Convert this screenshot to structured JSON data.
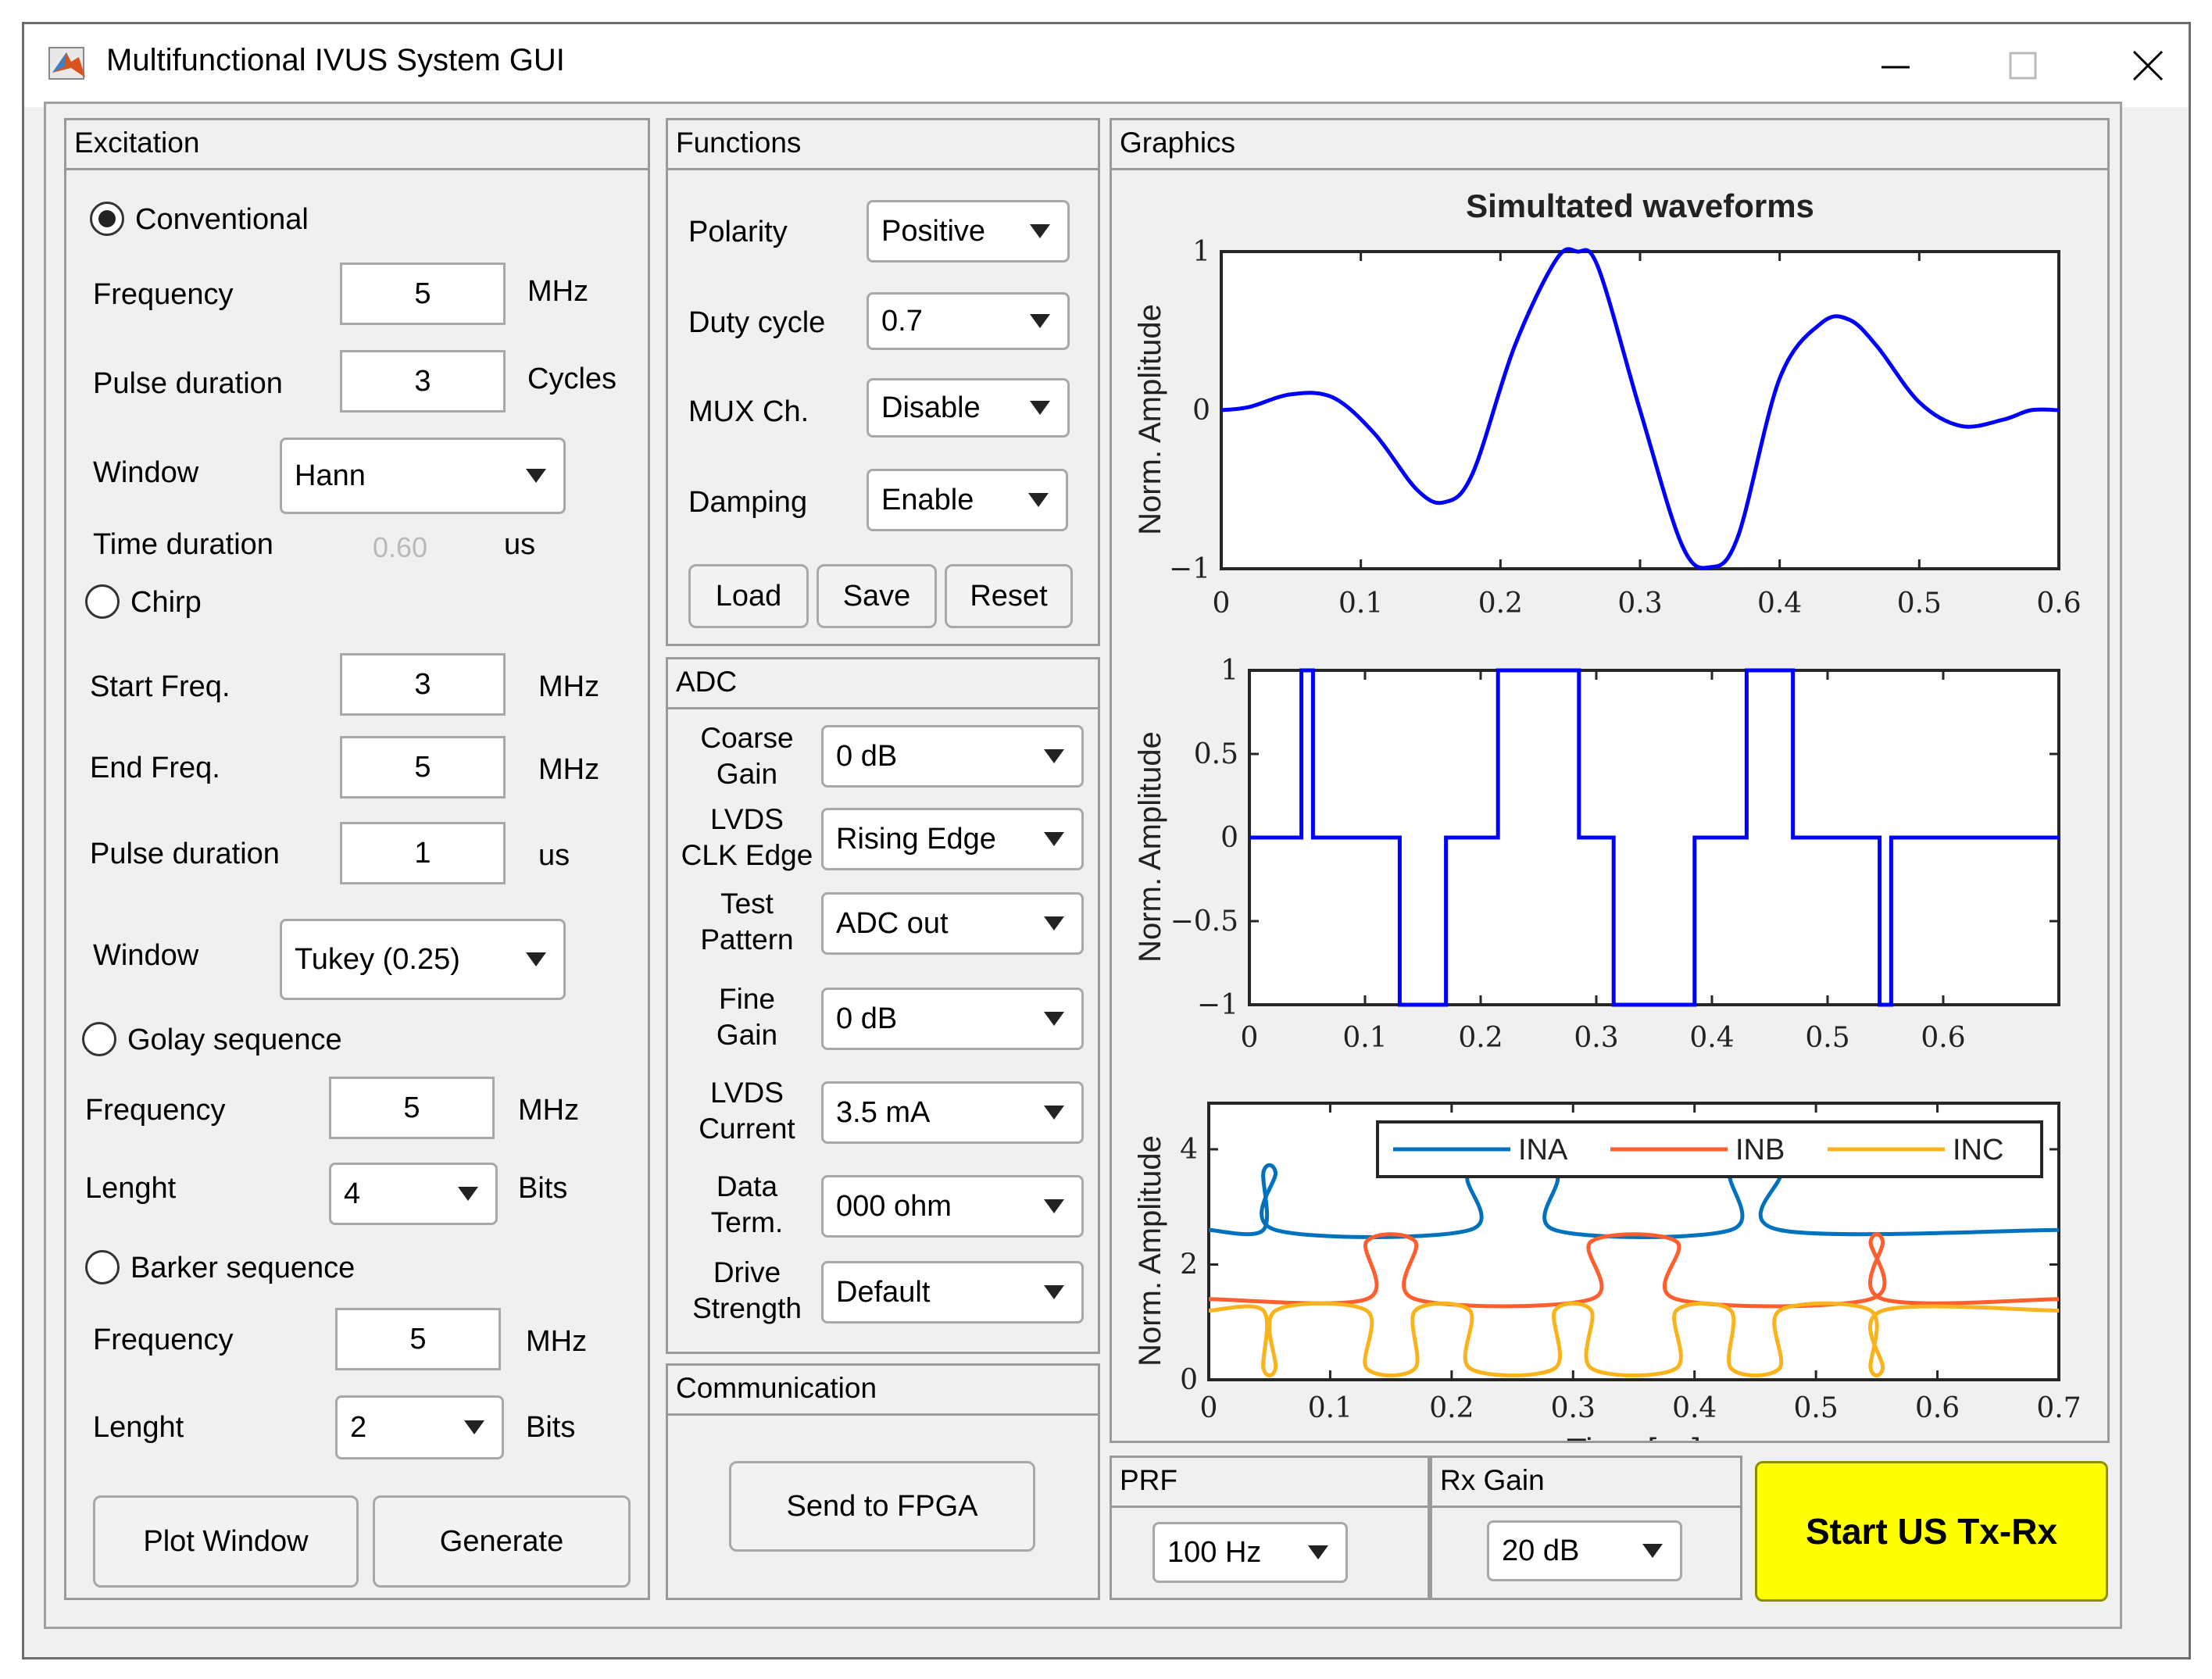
{
  "window": {
    "title": "Multifunctional IVUS System GUI"
  },
  "excitation": {
    "title": "Excitation",
    "conventional": {
      "label": "Conventional",
      "selected": true,
      "frequency": {
        "label": "Frequency",
        "value": "5",
        "unit": "MHz"
      },
      "pulse_duration": {
        "label": "Pulse duration",
        "value": "3",
        "unit": "Cycles"
      },
      "window": {
        "label": "Window",
        "value": "Hann"
      },
      "time_duration": {
        "label": "Time duration",
        "value": "0.60",
        "unit": "us"
      }
    },
    "chirp": {
      "label": "Chirp",
      "selected": false,
      "start_freq": {
        "label": "Start Freq.",
        "value": "3",
        "unit": "MHz"
      },
      "end_freq": {
        "label": "End Freq.",
        "value": "5",
        "unit": "MHz"
      },
      "pulse_duration": {
        "label": "Pulse duration",
        "value": "1",
        "unit": "us"
      },
      "window": {
        "label": "Window",
        "value": "Tukey (0.25)"
      }
    },
    "golay": {
      "label": "Golay sequence",
      "selected": false,
      "frequency": {
        "label": "Frequency",
        "value": "5",
        "unit": "MHz"
      },
      "length": {
        "label": "Lenght",
        "value": "4",
        "unit": "Bits"
      }
    },
    "barker": {
      "label": "Barker sequence",
      "selected": false,
      "frequency": {
        "label": "Frequency",
        "value": "5",
        "unit": "MHz"
      },
      "length": {
        "label": "Lenght",
        "value": "2",
        "unit": "Bits"
      }
    },
    "buttons": {
      "plot_window": "Plot Window",
      "generate": "Generate"
    }
  },
  "functions": {
    "title": "Functions",
    "polarity": {
      "label": "Polarity",
      "value": "Positive"
    },
    "duty_cycle": {
      "label": "Duty cycle",
      "value": "0.7"
    },
    "mux": {
      "label": "MUX Ch.",
      "value": "Disable"
    },
    "damping": {
      "label": "Damping",
      "value": "Enable"
    },
    "buttons": {
      "load": "Load",
      "save": "Save",
      "reset": "Reset"
    }
  },
  "adc": {
    "title": "ADC",
    "coarse_gain": {
      "label1": "Coarse",
      "label2": "Gain",
      "value": "0 dB"
    },
    "lvds_clk": {
      "label1": "LVDS",
      "label2": "CLK Edge",
      "value": "Rising Edge"
    },
    "test_pattern": {
      "label1": "Test",
      "label2": "Pattern",
      "value": "ADC out"
    },
    "fine_gain": {
      "label1": "Fine",
      "label2": "Gain",
      "value": "0 dB"
    },
    "lvds_current": {
      "label1": "LVDS",
      "label2": "Current",
      "value": "3.5 mA"
    },
    "data_term": {
      "label1": "Data",
      "label2": "Term.",
      "value": "000 ohm"
    },
    "drive_strength": {
      "label1": "Drive",
      "label2": "Strength",
      "value": "Default"
    }
  },
  "communication": {
    "title": "Communication",
    "send": "Send to FPGA"
  },
  "graphics": {
    "title": "Graphics"
  },
  "prf": {
    "title": "PRF",
    "value": "100 Hz"
  },
  "rx_gain": {
    "title": "Rx Gain",
    "value": "20 dB"
  },
  "start_button": "Start US Tx-Rx",
  "colors": {
    "wave": "#0000ff",
    "ina": "#0072bd",
    "inb": "#ff5e2e",
    "inc": "#f9b31c",
    "start_bg": "#ffff00"
  },
  "chart_data": [
    {
      "type": "line",
      "title": "Simultated waveforms",
      "xlabel": "",
      "ylabel": "Norm. Amplitude",
      "xlim": [
        0,
        0.6
      ],
      "ylim": [
        -1,
        1
      ],
      "xticks": [
        "0",
        "0.1",
        "0.2",
        "0.3",
        "0.4",
        "0.5",
        "0.6"
      ],
      "yticks": [
        "1",
        "0",
        "−1"
      ],
      "series": [
        {
          "x": [
            0,
            0.02,
            0.05,
            0.08,
            0.11,
            0.14,
            0.16,
            0.18,
            0.21,
            0.24,
            0.255,
            0.27,
            0.3,
            0.33,
            0.35,
            0.37,
            0.4,
            0.43,
            0.45,
            0.47,
            0.5,
            0.53,
            0.56,
            0.58,
            0.6
          ],
          "y": [
            0,
            0.02,
            0.1,
            0.08,
            -0.15,
            -0.5,
            -0.58,
            -0.4,
            0.4,
            0.95,
            1.0,
            0.9,
            0.0,
            -0.85,
            -0.99,
            -0.8,
            0.2,
            0.55,
            0.57,
            0.4,
            0.05,
            -0.1,
            -0.06,
            0.0,
            0.0
          ]
        }
      ]
    },
    {
      "type": "line",
      "title": "",
      "xlabel": "",
      "ylabel": "Norm. Amplitude",
      "xlim": [
        0,
        0.7
      ],
      "ylim": [
        -1,
        1
      ],
      "xticks": [
        "0",
        "0.1",
        "0.2",
        "0.3",
        "0.4",
        "0.5",
        "0.6"
      ],
      "yticks": [
        "1",
        "0.5",
        "0",
        "−0.5",
        "−1"
      ],
      "series": [
        {
          "step": true,
          "x": [
            0,
            0.045,
            0.045,
            0.055,
            0.055,
            0.13,
            0.13,
            0.17,
            0.17,
            0.215,
            0.215,
            0.285,
            0.285,
            0.315,
            0.315,
            0.385,
            0.385,
            0.43,
            0.43,
            0.47,
            0.47,
            0.545,
            0.545,
            0.555,
            0.555,
            0.7
          ],
          "y": [
            0,
            0,
            1,
            1,
            0,
            0,
            -1,
            -1,
            0,
            0,
            1,
            1,
            0,
            0,
            -1,
            -1,
            0,
            0,
            1,
            1,
            0,
            0,
            -1,
            -1,
            0,
            0
          ]
        }
      ]
    },
    {
      "type": "line",
      "title": "",
      "xlabel": "Time  [μs]",
      "ylabel": "Norm. Amplitude",
      "xlim": [
        0,
        0.7
      ],
      "ylim": [
        0,
        4.8
      ],
      "xticks": [
        "0",
        "0.1",
        "0.2",
        "0.3",
        "0.4",
        "0.5",
        "0.6",
        "0.7"
      ],
      "yticks": [
        "4",
        "2",
        "0"
      ],
      "legend": "top-right",
      "series": [
        {
          "name": "INA",
          "x": [
            0,
            0.045,
            0.045,
            0.055,
            0.055,
            0.215,
            0.215,
            0.285,
            0.285,
            0.43,
            0.43,
            0.47,
            0.47,
            0.7
          ],
          "y": [
            2.6,
            2.6,
            3.6,
            3.6,
            2.6,
            2.6,
            3.6,
            3.6,
            2.6,
            2.6,
            3.6,
            3.6,
            2.6,
            2.6
          ]
        },
        {
          "name": "INB",
          "x": [
            0,
            0.13,
            0.13,
            0.17,
            0.17,
            0.315,
            0.315,
            0.385,
            0.385,
            0.545,
            0.545,
            0.555,
            0.555,
            0.7
          ],
          "y": [
            1.4,
            1.4,
            2.4,
            2.4,
            1.4,
            1.4,
            2.4,
            2.4,
            1.4,
            1.4,
            2.4,
            2.4,
            1.4,
            1.4
          ]
        },
        {
          "name": "INC",
          "x": [
            0,
            0.045,
            0.045,
            0.055,
            0.055,
            0.13,
            0.13,
            0.17,
            0.17,
            0.215,
            0.215,
            0.285,
            0.285,
            0.315,
            0.315,
            0.385,
            0.385,
            0.43,
            0.43,
            0.47,
            0.47,
            0.545,
            0.545,
            0.555,
            0.555,
            0.7
          ],
          "y": [
            1.2,
            1.2,
            0.2,
            0.2,
            1.2,
            1.2,
            0.2,
            0.2,
            1.2,
            1.2,
            0.2,
            0.2,
            1.2,
            1.2,
            0.2,
            0.2,
            1.2,
            1.2,
            0.2,
            0.2,
            1.2,
            1.2,
            0.2,
            0.2,
            1.2,
            1.2
          ]
        }
      ]
    }
  ]
}
